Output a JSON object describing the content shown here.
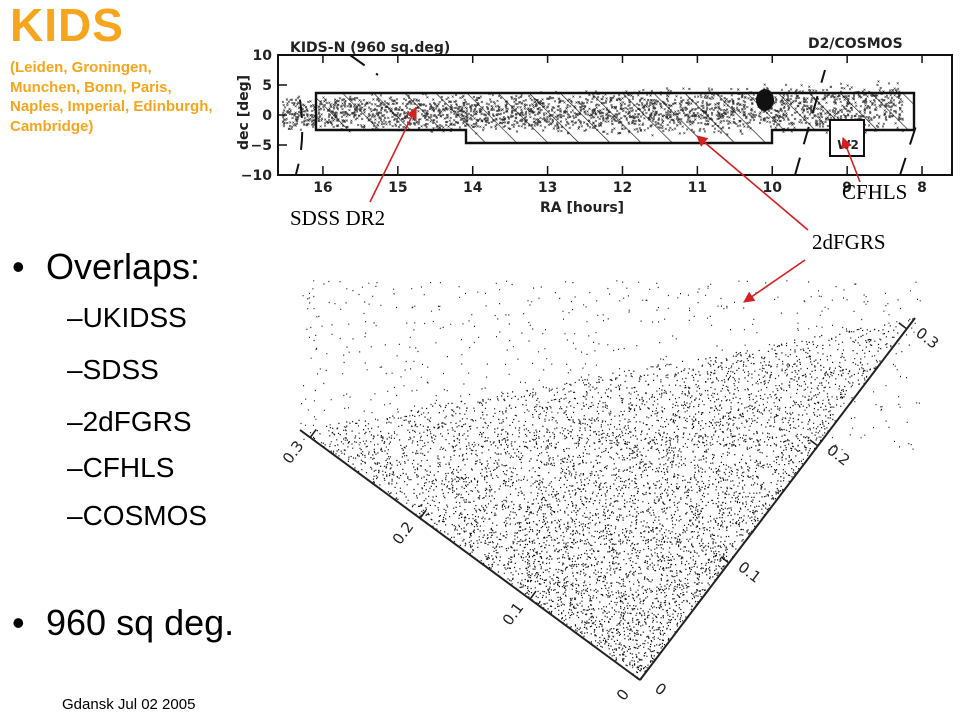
{
  "slide": {
    "title": "KIDS",
    "subtitle": "(Leiden, Groningen, Munchen, Bonn, Paris, Naples, Imperial, Edinburgh, Cambridge)",
    "bullets": {
      "overlaps_heading": "Overlaps:",
      "overlap_items": [
        "UKIDSS",
        "SDSS",
        "2dFGRS",
        "CFHLS",
        "COSMOS"
      ],
      "area": "960 sq deg."
    },
    "footer": "Gdansk Jul 02 2005",
    "annotations": {
      "sdss": "SDSS DR2",
      "cfhls": "CFHLS",
      "twodf": "2dFGRS"
    },
    "colors": {
      "title": "#f7a51c",
      "arrow": "#d42020",
      "text": "#000000"
    }
  },
  "survey_map": {
    "label": "KIDS-N (960 sq.deg)",
    "cosmos_label": "D2/COSMOS",
    "w2_label": "W2",
    "xlabel": "RA [hours]",
    "ylabel": "dec [deg]",
    "x_ticks": [
      16,
      15,
      14,
      13,
      12,
      11,
      10,
      9,
      8
    ],
    "y_ticks": [
      10,
      5,
      0,
      -5,
      -10
    ],
    "y_tick_labels": [
      "10",
      "5",
      "0",
      "−5",
      "−10"
    ],
    "xlim": [
      16.6,
      7.6
    ],
    "ylim": [
      -10,
      10
    ]
  },
  "redshift_cone": {
    "left_ticks": [
      "0",
      "0.1",
      "0.2",
      "0.3"
    ],
    "right_ticks": [
      "0",
      "0.1",
      "0.2",
      "0.3"
    ]
  }
}
